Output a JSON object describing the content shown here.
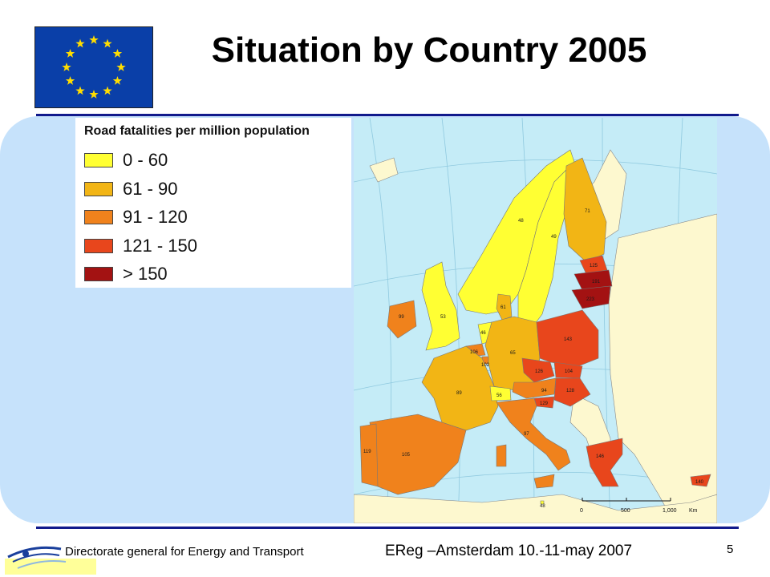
{
  "slide": {
    "title": "Situation by Country 2005",
    "page_number": "5"
  },
  "footer": {
    "directorate": "Directorate general for Energy and Transport",
    "event": "EReg –Amsterdam 10.-11-may 2007"
  },
  "legend": {
    "title": "Road fatalities per million population",
    "classes": [
      {
        "label": "0 - 60",
        "color": "#ffff33"
      },
      {
        "label": "61 - 90",
        "color": "#f2b515"
      },
      {
        "label": "91 - 120",
        "color": "#f0821c"
      },
      {
        "label": "121 - 150",
        "color": "#e8461c"
      },
      {
        "label": "> 150",
        "color": "#a31212"
      }
    ]
  },
  "colors": {
    "sea": "#c5ecf7",
    "non_eu_land": "#fdf8cf",
    "panel": "#c6e2fb",
    "rule": "#111a8c",
    "flag_blue": "#0a3fa8",
    "flag_stars": "#ffdd00"
  },
  "map": {
    "scale": {
      "ticks": [
        "0",
        "500",
        "1,000"
      ],
      "unit": "Km"
    },
    "country_values": [
      {
        "country": "Finland",
        "value": "71"
      },
      {
        "country": "Sweden",
        "value": "49"
      },
      {
        "country": "Norway",
        "value": "48"
      },
      {
        "country": "Estonia",
        "value": "125"
      },
      {
        "country": "Latvia",
        "value": "191"
      },
      {
        "country": "Lithuania",
        "value": "223"
      },
      {
        "country": "Denmark",
        "value": "61"
      },
      {
        "country": "United Kingdom",
        "value": "53"
      },
      {
        "country": "Ireland",
        "value": "99"
      },
      {
        "country": "Netherlands",
        "value": "46"
      },
      {
        "country": "Belgium",
        "value": "106"
      },
      {
        "country": "Luxembourg",
        "value": "102"
      },
      {
        "country": "Germany",
        "value": "65"
      },
      {
        "country": "Poland",
        "value": "143"
      },
      {
        "country": "Czech Republic",
        "value": "126"
      },
      {
        "country": "Slovakia",
        "value": "104"
      },
      {
        "country": "Austria",
        "value": "94"
      },
      {
        "country": "Hungary",
        "value": "128"
      },
      {
        "country": "Slovenia",
        "value": "129"
      },
      {
        "country": "France",
        "value": "89"
      },
      {
        "country": "Switzerland",
        "value": "56"
      },
      {
        "country": "Italy",
        "value": "97"
      },
      {
        "country": "Malta",
        "value": "48"
      },
      {
        "country": "Spain",
        "value": "105"
      },
      {
        "country": "Portugal",
        "value": "119"
      },
      {
        "country": "Greece",
        "value": "146"
      },
      {
        "country": "Cyprus",
        "value": "140"
      }
    ]
  }
}
